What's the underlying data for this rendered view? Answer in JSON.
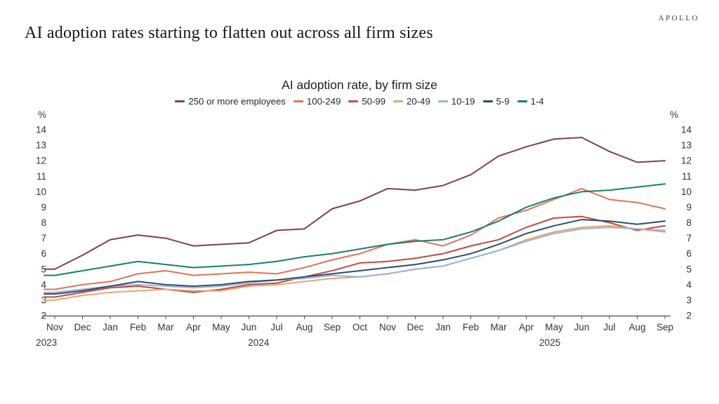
{
  "brand": "APOLLO",
  "page_title": "AI adoption rates starting to flatten out across all firm sizes",
  "chart_data": {
    "type": "line",
    "title": "AI adoption rate, by firm size",
    "unit_label": "%",
    "ylim": [
      2,
      14
    ],
    "ytick_step": 1,
    "grid": false,
    "legend_position": "top",
    "x_tick_labels": [
      "Nov",
      "Dec",
      "Jan",
      "Feb",
      "Mar",
      "Apr",
      "May",
      "Jun",
      "Jul",
      "Aug",
      "Sep",
      "Oct",
      "Nov",
      "Dec",
      "Jan",
      "Feb",
      "Mar",
      "Apr",
      "May",
      "Jun",
      "Jul",
      "Aug",
      "Sep"
    ],
    "x": [
      "Nov 2023",
      "Dec 2023",
      "Jan 2024",
      "Feb 2024",
      "Mar 2024",
      "Apr 2024",
      "May 2024",
      "Jun 2024",
      "Jul 2024",
      "Aug 2024",
      "Sep 2024",
      "Oct 2024",
      "Nov 2024",
      "Dec 2024",
      "Jan 2025",
      "Feb 2025",
      "Mar 2025",
      "Apr 2025",
      "May 2025",
      "Jun 2025",
      "Jul 2025",
      "Aug 2025",
      "Sep 2025"
    ],
    "year_labels": [
      {
        "text": "2023",
        "at_index": -0.3
      },
      {
        "text": "2024",
        "at_index": 7.35
      },
      {
        "text": "2025",
        "at_index": 17.85
      }
    ],
    "series": [
      {
        "name": "250 or more employees",
        "color": "#7d3f54",
        "values": [
          5.0,
          5.9,
          6.9,
          7.2,
          7.0,
          6.5,
          6.6,
          6.7,
          7.5,
          7.6,
          8.9,
          9.4,
          10.2,
          10.1,
          10.4,
          11.1,
          12.3,
          12.9,
          13.4,
          13.5,
          12.6,
          11.9,
          12.0
        ]
      },
      {
        "name": "100-249",
        "color": "#e27356",
        "values": [
          3.7,
          4.0,
          4.2,
          4.7,
          4.9,
          4.6,
          4.7,
          4.8,
          4.7,
          5.1,
          5.6,
          6.0,
          6.6,
          6.9,
          6.5,
          7.2,
          8.3,
          8.8,
          9.5,
          10.2,
          9.5,
          9.3,
          8.9
        ]
      },
      {
        "name": "50-99",
        "color": "#bf4a42",
        "values": [
          3.2,
          3.5,
          3.8,
          3.9,
          3.7,
          3.5,
          3.7,
          4.0,
          4.1,
          4.5,
          4.9,
          5.4,
          5.5,
          5.7,
          6.0,
          6.5,
          6.9,
          7.7,
          8.3,
          8.4,
          8.0,
          7.5,
          7.8
        ]
      },
      {
        "name": "20-49",
        "color": "#eca46f",
        "values": [
          3.0,
          3.3,
          3.5,
          3.6,
          3.7,
          3.6,
          3.6,
          3.9,
          4.0,
          4.2,
          4.4,
          4.5,
          4.7,
          5.0,
          5.2,
          5.7,
          6.2,
          6.9,
          7.4,
          7.7,
          7.8,
          7.6,
          7.4
        ]
      },
      {
        "name": "10-19",
        "color": "#94b6d7",
        "values": [
          3.5,
          3.7,
          3.9,
          4.0,
          3.9,
          3.8,
          3.9,
          4.1,
          4.3,
          4.4,
          4.6,
          4.5,
          4.7,
          5.0,
          5.2,
          5.7,
          6.2,
          6.8,
          7.3,
          7.6,
          7.7,
          7.6,
          7.5
        ]
      },
      {
        "name": "5-9",
        "color": "#2e4d6b",
        "values": [
          3.4,
          3.6,
          3.9,
          4.2,
          4.0,
          3.9,
          4.0,
          4.2,
          4.3,
          4.5,
          4.7,
          4.9,
          5.1,
          5.3,
          5.6,
          6.0,
          6.6,
          7.3,
          7.8,
          8.2,
          8.1,
          7.9,
          8.1
        ]
      },
      {
        "name": "1-4",
        "color": "#17806b",
        "values": [
          4.6,
          4.9,
          5.2,
          5.5,
          5.3,
          5.1,
          5.2,
          5.3,
          5.5,
          5.8,
          6.0,
          6.3,
          6.6,
          6.8,
          6.9,
          7.4,
          8.1,
          9.0,
          9.6,
          10.0,
          10.1,
          10.3,
          10.5
        ]
      }
    ]
  }
}
